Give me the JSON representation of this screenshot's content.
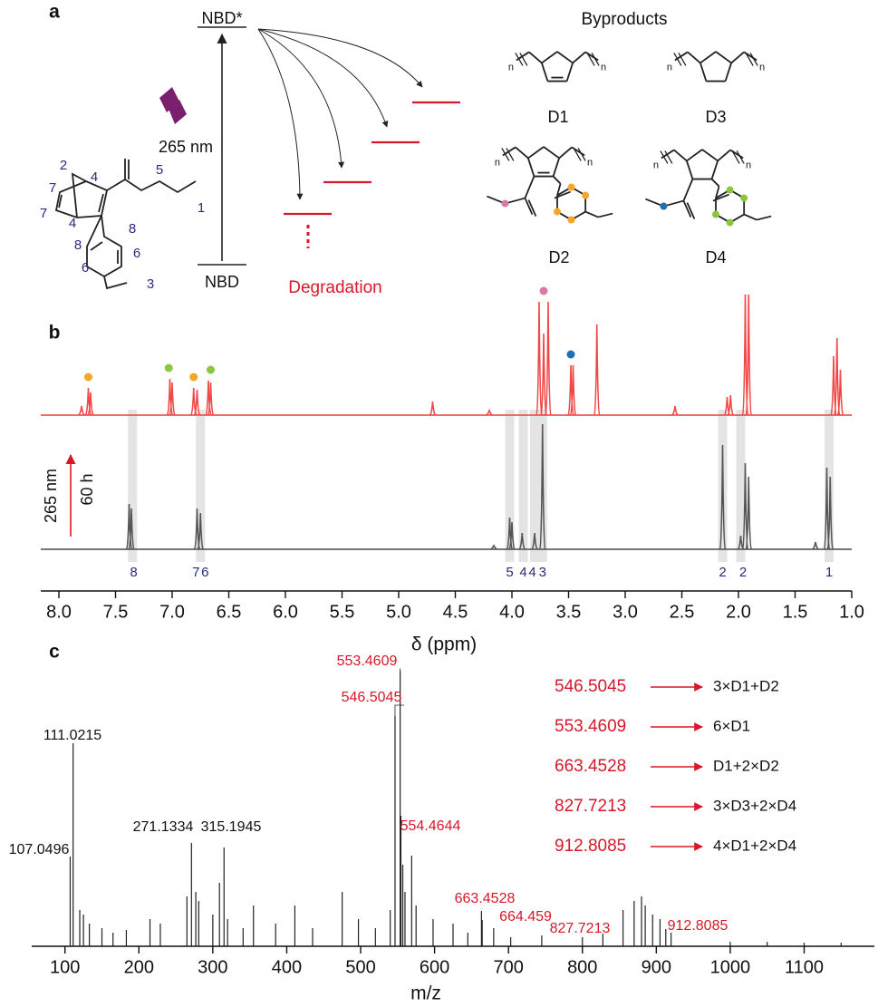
{
  "diagram": {
    "panel_label": "a",
    "excited": "NBD*",
    "wavelength": "265 nm",
    "ground": "NBD",
    "degradation": "Degradation",
    "byproducts_title": "Byproducts",
    "byproducts": [
      "D1",
      "D3",
      "D2",
      "D4"
    ],
    "repeat_unit": "n",
    "atom_numbers": [
      "2",
      "4",
      "5",
      "1",
      "7",
      "7",
      "4",
      "8",
      "8",
      "6",
      "6",
      "3"
    ]
  },
  "chart_data": [
    {
      "type": "spectrum",
      "panel_label": "b",
      "xlabel": "δ (ppm)",
      "xlim": [
        8.16,
        1.0
      ],
      "ylim": [
        0,
        140
      ],
      "xticks": [
        {
          "value": 8,
          "label": "8.0"
        },
        7.5,
        {
          "value": 7,
          "label": "7.0"
        },
        6.5,
        {
          "value": 6,
          "label": "6.0"
        },
        5.5,
        {
          "value": 5,
          "label": "5.0"
        },
        4.5,
        {
          "value": 4,
          "label": "4.0"
        },
        3.5,
        {
          "value": 3,
          "label": "3.0"
        },
        2.5,
        {
          "value": 2,
          "label": "2.0"
        },
        1.5,
        {
          "value": 1,
          "label": "1.0"
        }
      ],
      "series": [
        {
          "color": "#f04848",
          "x": [
            7.8,
            7.74,
            7.72,
            7.02,
            7.0,
            6.81,
            6.78,
            6.68,
            6.66,
            4.7,
            4.2,
            3.76,
            3.72,
            3.68,
            3.48,
            3.46,
            3.25,
            2.56,
            2.1,
            2.07,
            1.94,
            1.91,
            1.16,
            1.13,
            1.1
          ],
          "values": [
            10,
            30,
            25,
            40,
            36,
            30,
            28,
            38,
            36,
            15,
            5,
            125,
            90,
            125,
            55,
            55,
            100,
            10,
            20,
            22,
            133,
            133,
            65,
            85,
            50
          ]
        },
        {
          "color": "#555555",
          "x": [
            7.38,
            7.36,
            6.78,
            6.75,
            4.16,
            4.02,
            4.0,
            3.91,
            3.8,
            3.73,
            2.14,
            1.98,
            1.94,
            1.91,
            1.32,
            1.22,
            1.19
          ],
          "values": [
            50,
            45,
            45,
            40,
            4,
            35,
            30,
            18,
            18,
            138,
            115,
            15,
            95,
            80,
            8,
            90,
            80
          ]
        }
      ],
      "highlights": {
        "x": [
          7.35,
          6.75,
          4.02,
          3.9,
          3.8,
          3.73,
          2.14,
          1.98,
          1.2
        ],
        "color": "#e4e4e4"
      },
      "assignments": {
        "x": [
          7.34,
          6.79,
          6.71,
          4.02,
          3.9,
          3.82,
          3.73,
          2.14,
          1.96,
          1.2
        ],
        "labels": [
          "8",
          "7",
          "6",
          "5",
          "4",
          "4",
          "3",
          "2",
          "2",
          "1"
        ]
      },
      "peak_markers": {
        "x": [
          7.74,
          7.03,
          6.81,
          6.66,
          3.72,
          3.48
        ],
        "colors": [
          "#f5a623",
          "#8cc63f",
          "#f5a623",
          "#8cc63f",
          "#d97aa6",
          "#1f6fb2"
        ]
      },
      "annotation": {
        "irradiation": "265 nm",
        "time": "60 h"
      }
    },
    {
      "type": "mass-spectrum",
      "panel_label": "c",
      "xlabel": "m/z",
      "xlim": [
        55,
        1195
      ],
      "ylim": [
        0,
        310
      ],
      "xticks": [
        100,
        200,
        300,
        400,
        500,
        600,
        700,
        800,
        900,
        1000,
        1100
      ],
      "series": [
        {
          "color": "#222222",
          "x": [
            111.0215,
            107.0496,
            271.1334,
            315.1945,
            553.4609,
            546.5045,
            554.4644,
            663.4528,
            664.459,
            827.7213,
            912.8085
          ],
          "values": [
            224,
            99,
            114,
            109,
            304,
            254,
            144,
            39,
            29,
            14,
            19
          ],
          "label_colors": [
            "#111111",
            "#111111",
            "#111111",
            "#111111",
            "#d7182a",
            "#d7182a",
            "#d7182a",
            "#d7182a",
            "#d7182a",
            "#d7182a",
            "#d7182a"
          ]
        },
        {
          "color": "#222222",
          "x": [
            120,
            125,
            133,
            150,
            165,
            183,
            215,
            229,
            265,
            277,
            281,
            300,
            309,
            320,
            341,
            355,
            385,
            411,
            435,
            475,
            497,
            520,
            540,
            557,
            560,
            569,
            575,
            598,
            625,
            645,
            680,
            703,
            745,
            800,
            855,
            870,
            880,
            885,
            895,
            905,
            920,
            1000,
            1050,
            1100,
            1150
          ],
          "values": [
            40,
            35,
            25,
            20,
            15,
            18,
            30,
            25,
            55,
            60,
            50,
            35,
            70,
            30,
            20,
            45,
            25,
            45,
            20,
            60,
            30,
            20,
            40,
            90,
            60,
            100,
            45,
            30,
            25,
            15,
            20,
            10,
            12,
            10,
            40,
            50,
            55,
            45,
            35,
            30,
            15,
            5,
            5,
            4,
            4
          ]
        }
      ],
      "assignments": {
        "masses": [
          "546.5045",
          "553.4609",
          "663.4528",
          "827.7213",
          "912.8085"
        ],
        "formulas": [
          "3×D1+D2",
          "6×D1",
          "D1+2×D2",
          "3×D3+2×D4",
          "4×D1+2×D4"
        ]
      }
    }
  ]
}
